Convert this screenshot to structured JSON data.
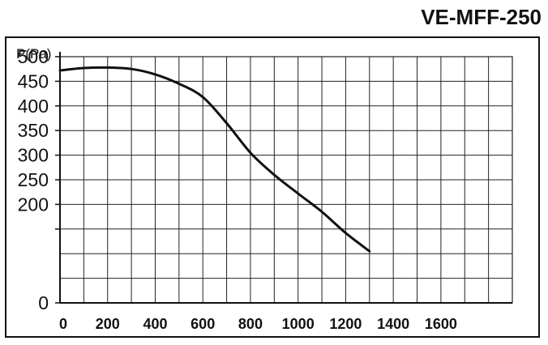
{
  "chart_data": {
    "type": "line",
    "title": "VE-MFF-250",
    "ylabel": "P(Pa)",
    "xlabel": "",
    "xlim": [
      0,
      1900
    ],
    "ylim": [
      0,
      500
    ],
    "x_ticks": [
      0,
      200,
      400,
      600,
      800,
      1000,
      1200,
      1400,
      1600
    ],
    "y_ticks": [
      0,
      50,
      100,
      150,
      200,
      250,
      300,
      350,
      400,
      450,
      500
    ],
    "y_tick_labels": [
      "0",
      "",
      "200",
      "250",
      "300",
      "350",
      "400",
      "450",
      "500"
    ],
    "y_tick_label_values": [
      0,
      150,
      200,
      250,
      300,
      350,
      400,
      450,
      500
    ],
    "grid": true,
    "series": [
      {
        "x": [
          0,
          100,
          200,
          300,
          400,
          500,
          600,
          700,
          800,
          900,
          1000,
          1100,
          1200,
          1300
        ],
        "y": [
          472,
          477,
          478,
          475,
          464,
          445,
          418,
          365,
          305,
          260,
          222,
          185,
          142,
          105
        ]
      }
    ],
    "line_color": "#111111",
    "grid_color": "#222222"
  }
}
